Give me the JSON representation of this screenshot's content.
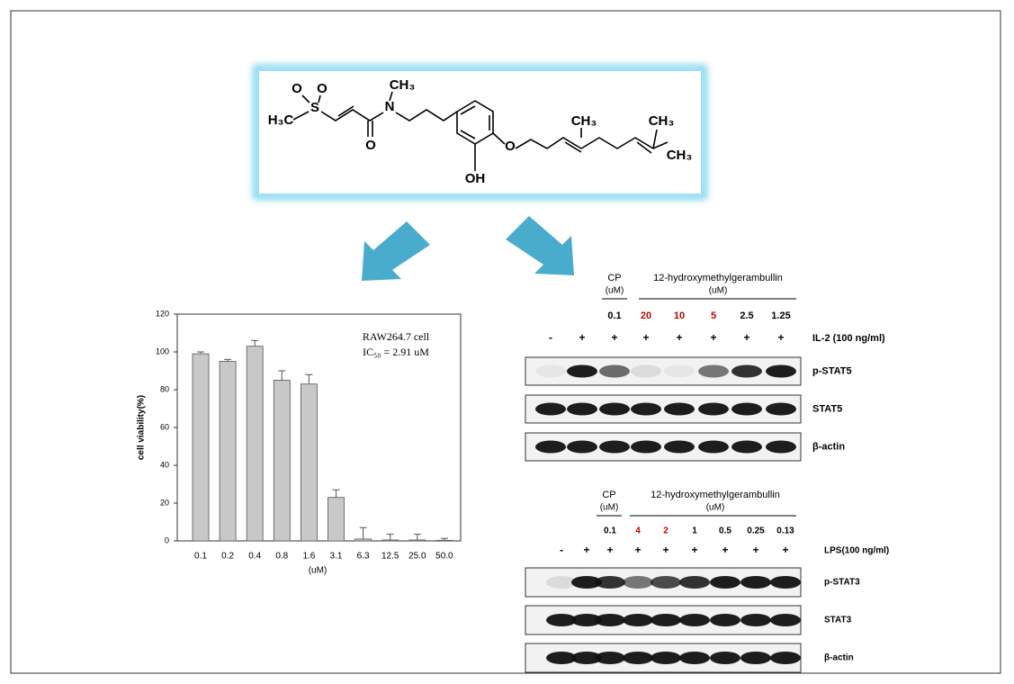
{
  "structure": {
    "labels": [
      "H₃C",
      "S",
      "O",
      "O",
      "N",
      "CH₃",
      "O",
      "O",
      "OH",
      "CH₃",
      "CH₃",
      "CH₃"
    ]
  },
  "chart_data": {
    "type": "bar",
    "annotations": [
      "RAW264.7 cell",
      "IC₅₀ = 2.91 uM"
    ],
    "x_label": "(uM)",
    "y_label": "cell viability(%)",
    "categories": [
      "0.1",
      "0.2",
      "0.4",
      "0.8",
      "1.6",
      "3.1",
      "6.3",
      "12.5",
      "25.0",
      "50.0"
    ],
    "values": [
      99,
      95,
      103,
      85,
      83,
      23,
      1,
      0.5,
      0.5,
      0.3
    ],
    "errors": [
      1,
      1,
      3,
      5,
      5,
      4,
      6,
      3,
      3,
      1
    ],
    "color": "#c8c8c8",
    "ylim": [
      0,
      120
    ],
    "yticks": [
      0,
      20,
      40,
      60,
      80,
      100,
      120
    ]
  },
  "blot_top": {
    "cp_label": "CP",
    "cp_unit": "(uM)",
    "compound": "12-hydroxymethylgerambullin",
    "compound_unit": "(uM)",
    "doses": [
      "0.1",
      "20",
      "10",
      "5",
      "2.5",
      "1.25"
    ],
    "dose_colors": [
      "#000000",
      "#c00000",
      "#c00000",
      "#c00000",
      "#000000",
      "#000000"
    ],
    "signs": [
      "-",
      "+",
      "+",
      "+",
      "+",
      "+",
      "+",
      "+"
    ],
    "treatment": "IL-2 (100 ng/ml)",
    "rows": [
      "p-STAT5",
      "STAT5",
      "β-actin"
    ]
  },
  "blot_bottom": {
    "cp_label": "CP",
    "cp_unit": "(uM)",
    "compound": "12-hydroxymethylgerambullin",
    "compound_unit": "(uM)",
    "doses": [
      "0.1",
      "4",
      "2",
      "1",
      "0.5",
      "0.25",
      "0.13"
    ],
    "dose_colors": [
      "#000000",
      "#c00000",
      "#c00000",
      "#000000",
      "#000000",
      "#000000",
      "#000000"
    ],
    "signs": [
      "-",
      "+",
      "+",
      "+",
      "+",
      "+",
      "+",
      "+",
      "+"
    ],
    "treatment": "LPS(100 ng/ml)",
    "rows": [
      "p-STAT3",
      "STAT3",
      "β-actin"
    ]
  }
}
